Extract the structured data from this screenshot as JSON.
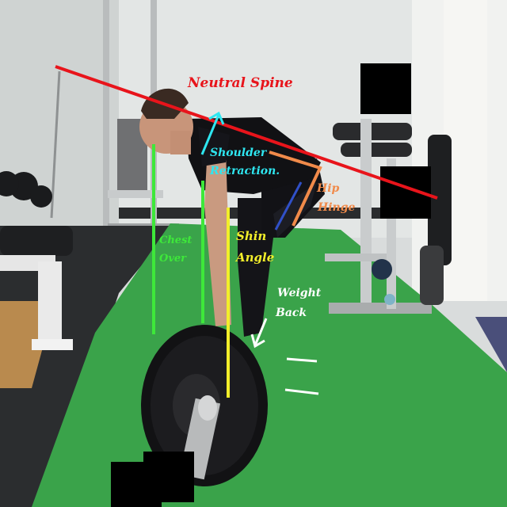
{
  "annotations": {
    "neutral_spine": "Neutral Spine",
    "shoulder_retraction_line1": "Shoulder",
    "shoulder_retraction_line2": "Retraction.",
    "hip_hinge_line1": "Hip",
    "hip_hinge_line2": "Hinge",
    "chest_over_line1": "Chest",
    "chest_over_line2": "Over",
    "shin_angle_line1": "Shin",
    "shin_angle_line2": "Angle",
    "weight_back_line1": "Weight",
    "weight_back_line2": "Back"
  },
  "colors": {
    "neutral_spine": "#e8141b",
    "shoulder_retraction": "#2ee6f0",
    "hip_hinge": "#f08a4a",
    "chest_over": "#3ee83a",
    "shin_angle": "#f2ee2a",
    "weight_back": "#ffffff",
    "turf": "#3aa34a",
    "redaction": "#000000"
  }
}
